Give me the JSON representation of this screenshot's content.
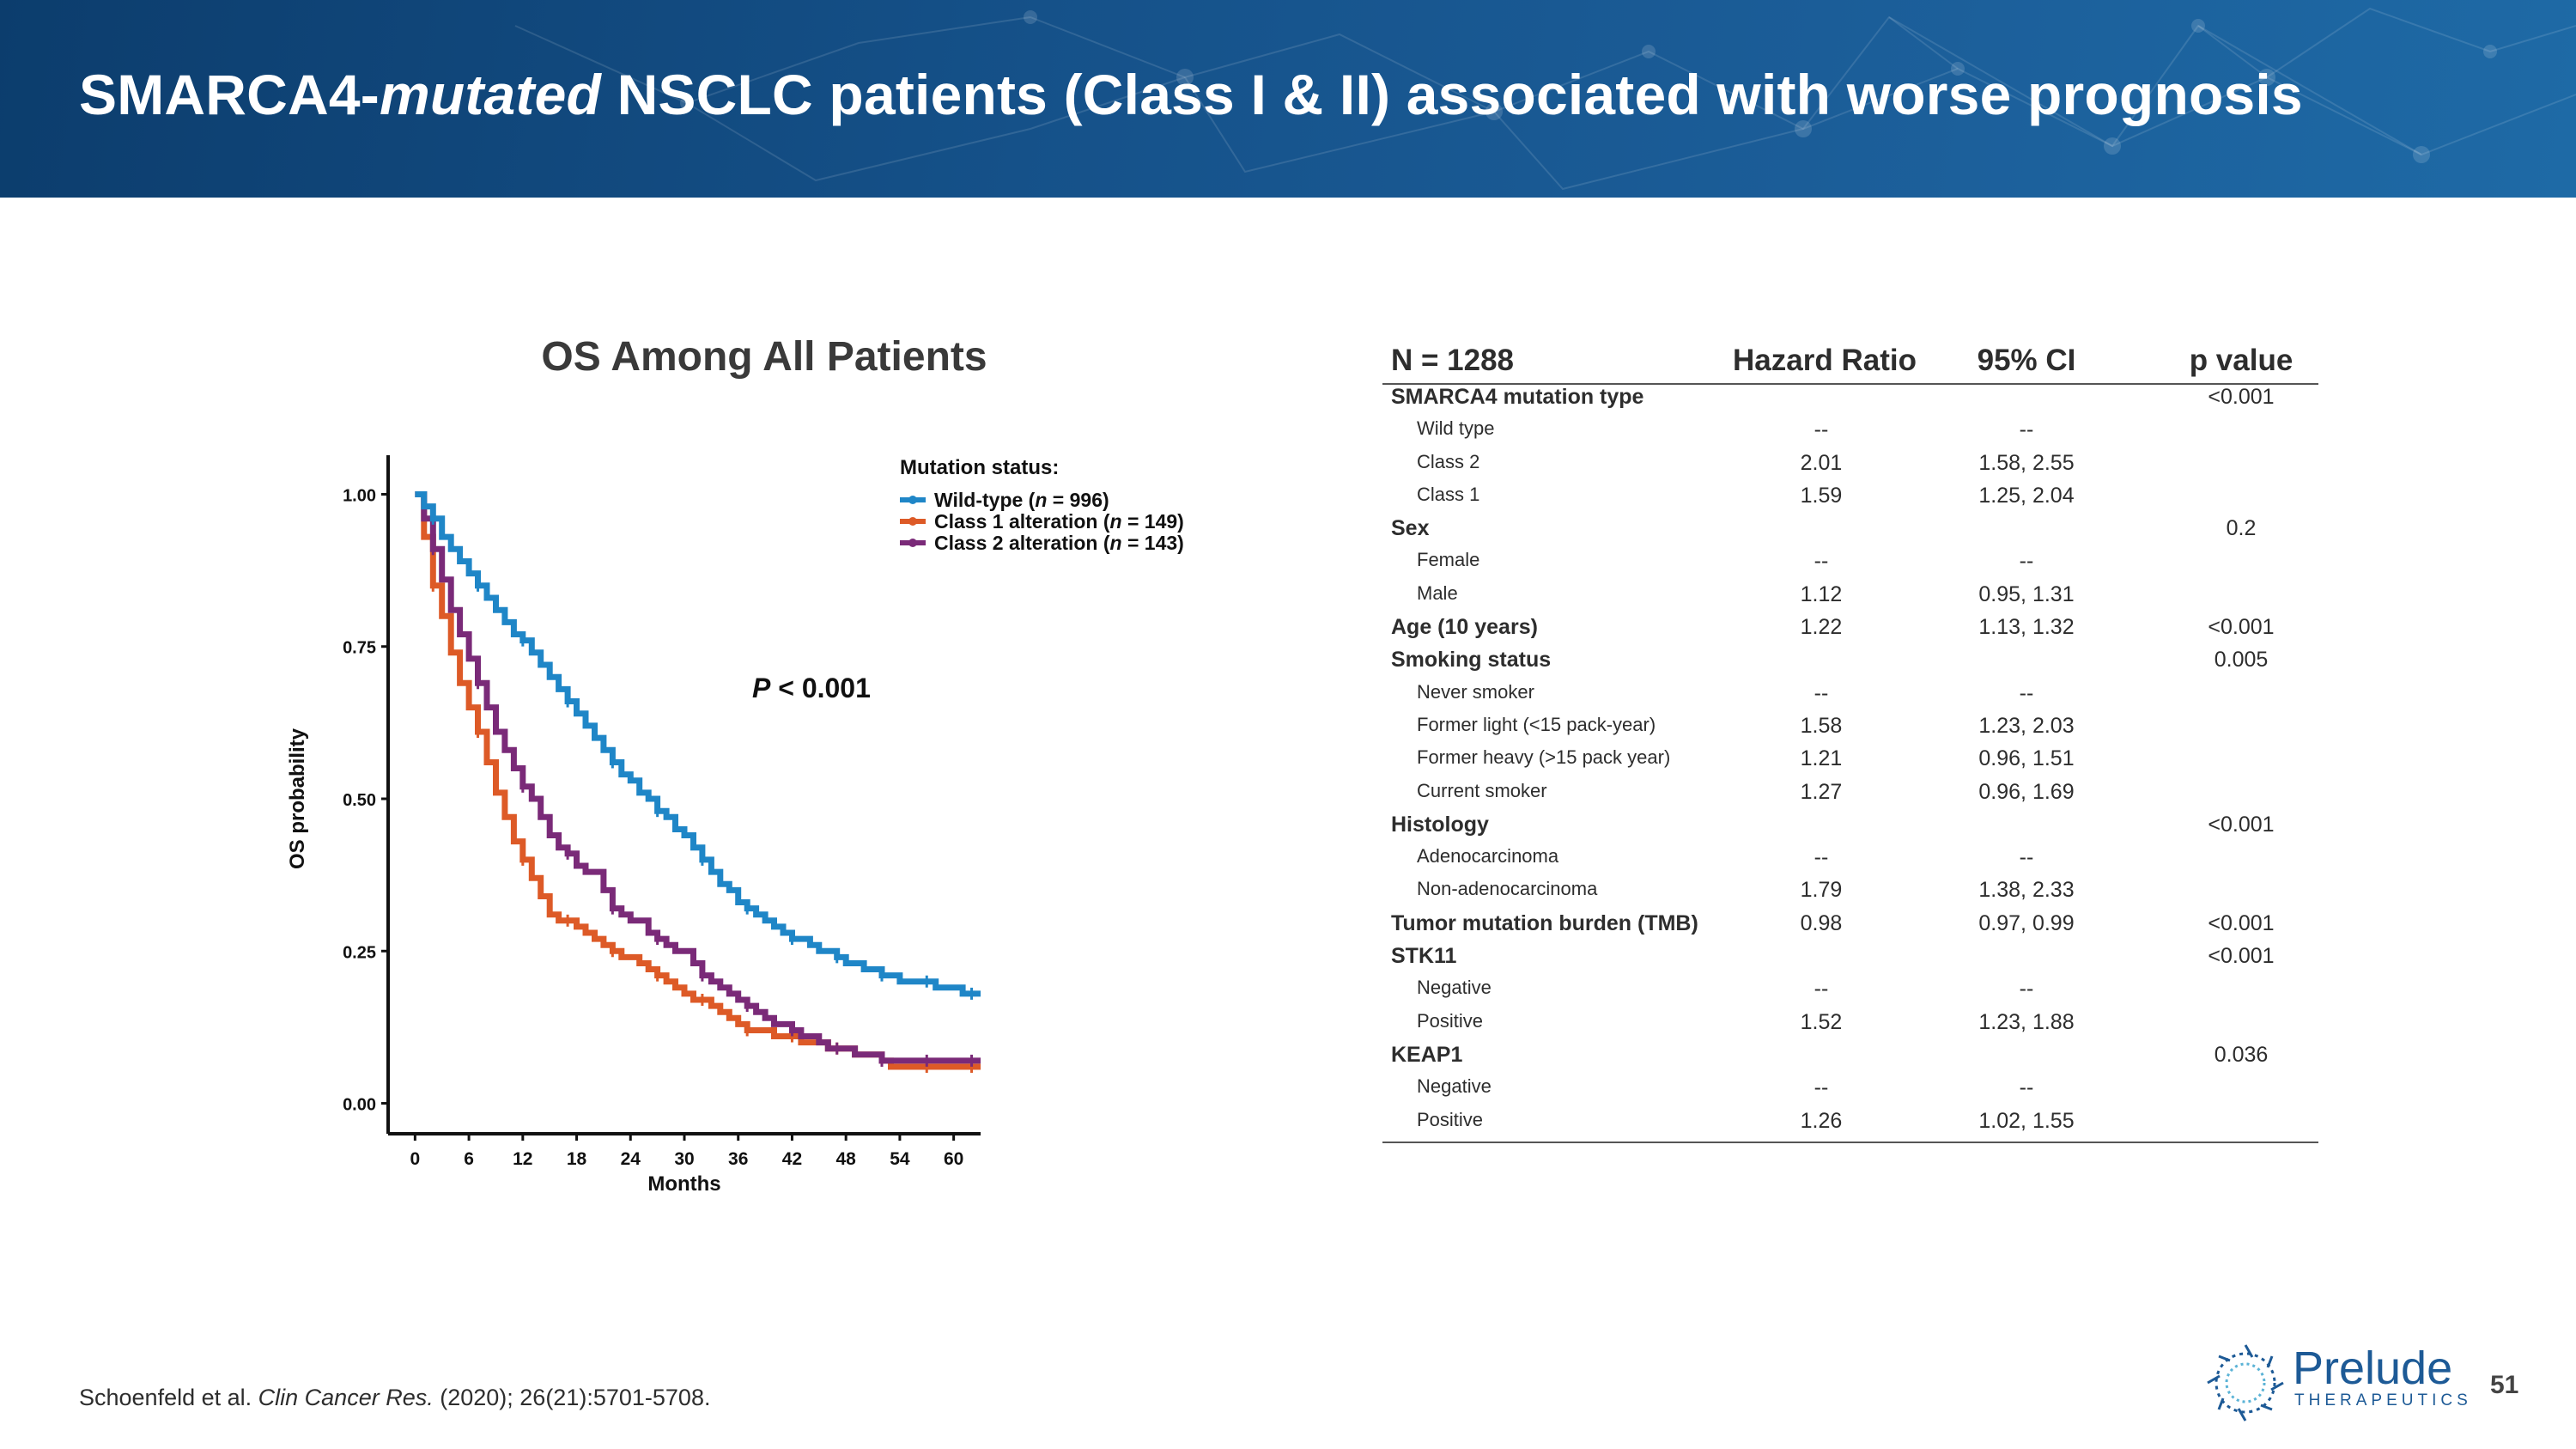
{
  "slide": {
    "title_part1": "SMARCA4-",
    "title_italic": "mutated",
    "title_part2": " NSCLC patients (Class I & II) associated with worse prognosis",
    "page_number": "51",
    "reference": {
      "authors": "Schoenfeld et al. ",
      "journal": "Clin Cancer Res.",
      "details": " (2020); 26(21):5701-5708."
    },
    "logo": {
      "name": "Prelude",
      "tagline": "THERAPEUTICS"
    },
    "colors": {
      "header": "#155189",
      "wild_type": "#1f86c7",
      "class1": "#dd5a27",
      "class2": "#7a2a78"
    }
  },
  "chart_data": {
    "type": "line",
    "title": "OS Among All Patients",
    "xlabel": "Months",
    "ylabel": "OS probability",
    "xlim": [
      -3,
      63
    ],
    "ylim": [
      -0.05,
      1.05
    ],
    "x_ticks": [
      0,
      6,
      12,
      18,
      24,
      30,
      36,
      42,
      48,
      54,
      60
    ],
    "y_ticks": [
      0.0,
      0.25,
      0.5,
      0.75,
      1.0
    ],
    "y_tick_labels": [
      "0.00",
      "0.25",
      "0.50",
      "0.75",
      "1.00"
    ],
    "annotation": "< 0.001",
    "annotation_prefix": "P",
    "legend": {
      "title": "Mutation status:",
      "placement": "top-right"
    },
    "series": [
      {
        "name": "Wild-type",
        "n": "996",
        "label_prefix": "Wild-type (",
        "label_suffix": " = 996)",
        "color": "#1f86c7",
        "x": [
          0,
          1,
          2,
          3,
          4,
          5,
          6,
          7,
          8,
          9,
          10,
          11,
          12,
          13,
          14,
          15,
          16,
          17,
          18,
          19,
          20,
          21,
          22,
          23,
          24,
          25,
          26,
          27,
          28,
          29,
          30,
          31,
          32,
          33,
          34,
          35,
          36,
          37,
          38,
          39,
          40,
          41,
          42,
          43,
          44,
          45,
          46,
          47,
          48,
          49,
          50,
          51,
          52,
          53,
          54,
          55,
          56,
          57,
          58,
          59,
          60,
          61,
          62,
          63
        ],
        "y": [
          1.0,
          0.98,
          0.96,
          0.93,
          0.91,
          0.89,
          0.87,
          0.85,
          0.83,
          0.81,
          0.79,
          0.77,
          0.76,
          0.74,
          0.72,
          0.7,
          0.68,
          0.66,
          0.64,
          0.62,
          0.6,
          0.58,
          0.56,
          0.54,
          0.53,
          0.51,
          0.5,
          0.48,
          0.47,
          0.45,
          0.44,
          0.42,
          0.4,
          0.38,
          0.36,
          0.35,
          0.33,
          0.32,
          0.31,
          0.3,
          0.29,
          0.28,
          0.27,
          0.27,
          0.26,
          0.25,
          0.25,
          0.24,
          0.23,
          0.23,
          0.22,
          0.22,
          0.21,
          0.21,
          0.2,
          0.2,
          0.2,
          0.2,
          0.19,
          0.19,
          0.19,
          0.18,
          0.18,
          0.18
        ]
      },
      {
        "name": "Class 1 alteration",
        "n": "149",
        "label_prefix": "Class 1 alteration (",
        "label_suffix": " = 149)",
        "color": "#dd5a27",
        "x": [
          0,
          1,
          2,
          3,
          4,
          5,
          6,
          7,
          8,
          9,
          10,
          11,
          12,
          13,
          14,
          15,
          16,
          17,
          18,
          19,
          20,
          21,
          22,
          23,
          24,
          25,
          26,
          27,
          28,
          29,
          30,
          31,
          32,
          33,
          34,
          35,
          36,
          37,
          38,
          39,
          40,
          41,
          42,
          43,
          44,
          45,
          46,
          47,
          48,
          49,
          50,
          51,
          52,
          53,
          54,
          55,
          56,
          57,
          58,
          59,
          60,
          61,
          62,
          63
        ],
        "y": [
          1.0,
          0.93,
          0.85,
          0.8,
          0.74,
          0.69,
          0.65,
          0.61,
          0.56,
          0.51,
          0.47,
          0.43,
          0.4,
          0.37,
          0.34,
          0.31,
          0.3,
          0.3,
          0.29,
          0.28,
          0.27,
          0.26,
          0.25,
          0.24,
          0.24,
          0.23,
          0.22,
          0.21,
          0.2,
          0.19,
          0.18,
          0.17,
          0.17,
          0.16,
          0.15,
          0.14,
          0.13,
          0.12,
          0.12,
          0.12,
          0.11,
          0.11,
          0.11,
          0.1,
          0.1,
          0.1,
          0.09,
          0.09,
          0.09,
          0.08,
          0.08,
          0.08,
          0.07,
          0.06,
          0.06,
          0.06,
          0.06,
          0.06,
          0.06,
          0.06,
          0.06,
          0.06,
          0.06,
          0.06
        ]
      },
      {
        "name": "Class 2 alteration",
        "n": "143",
        "label_prefix": "Class 2 alteration (",
        "label_suffix": " = 143)",
        "color": "#7a2a78",
        "x": [
          0,
          1,
          2,
          3,
          4,
          5,
          6,
          7,
          8,
          9,
          10,
          11,
          12,
          13,
          14,
          15,
          16,
          17,
          18,
          19,
          20,
          21,
          22,
          23,
          24,
          25,
          26,
          27,
          28,
          29,
          30,
          31,
          32,
          33,
          34,
          35,
          36,
          37,
          38,
          39,
          40,
          41,
          42,
          43,
          44,
          45,
          46,
          47,
          48,
          49,
          50,
          51,
          52,
          53,
          54,
          55,
          56,
          57,
          58,
          59,
          60,
          61,
          62,
          63
        ],
        "y": [
          1.0,
          0.96,
          0.91,
          0.86,
          0.81,
          0.77,
          0.73,
          0.69,
          0.65,
          0.61,
          0.58,
          0.55,
          0.52,
          0.5,
          0.47,
          0.44,
          0.42,
          0.41,
          0.39,
          0.38,
          0.38,
          0.35,
          0.32,
          0.31,
          0.3,
          0.3,
          0.28,
          0.27,
          0.26,
          0.25,
          0.25,
          0.23,
          0.21,
          0.2,
          0.19,
          0.18,
          0.17,
          0.16,
          0.15,
          0.14,
          0.13,
          0.13,
          0.12,
          0.11,
          0.11,
          0.1,
          0.09,
          0.09,
          0.09,
          0.08,
          0.08,
          0.08,
          0.07,
          0.07,
          0.07,
          0.07,
          0.07,
          0.07,
          0.07,
          0.07,
          0.07,
          0.07,
          0.07,
          0.07
        ]
      }
    ]
  },
  "hr_table": {
    "headers": [
      "N = 1288",
      "Hazard Ratio",
      "95% CI",
      "p value"
    ],
    "rows": [
      {
        "label": "SMARCA4 mutation type",
        "hr": "",
        "ci": "",
        "p": "<0.001",
        "kind": "grp"
      },
      {
        "label": "Wild type",
        "hr": "--",
        "ci": "--",
        "p": "",
        "kind": "sub"
      },
      {
        "label": "Class 2",
        "hr": "2.01",
        "ci": "1.58, 2.55",
        "p": "",
        "kind": "sub"
      },
      {
        "label": "Class 1",
        "hr": "1.59",
        "ci": "1.25, 2.04",
        "p": "",
        "kind": "sub"
      },
      {
        "label": "Sex",
        "hr": "",
        "ci": "",
        "p": "0.2",
        "kind": "grp"
      },
      {
        "label": "Female",
        "hr": "--",
        "ci": "--",
        "p": "",
        "kind": "sub"
      },
      {
        "label": "Male",
        "hr": "1.12",
        "ci": "0.95, 1.31",
        "p": "",
        "kind": "sub"
      },
      {
        "label": "Age (10 years)",
        "hr": "1.22",
        "ci": "1.13, 1.32",
        "p": "<0.001",
        "kind": "grp"
      },
      {
        "label": "Smoking status",
        "hr": "",
        "ci": "",
        "p": "0.005",
        "kind": "grp"
      },
      {
        "label": "Never smoker",
        "hr": "--",
        "ci": "--",
        "p": "",
        "kind": "sub"
      },
      {
        "label": "Former light (<15 pack-year)",
        "hr": "1.58",
        "ci": "1.23, 2.03",
        "p": "",
        "kind": "sub"
      },
      {
        "label": "Former heavy (>15 pack year)",
        "hr": "1.21",
        "ci": "0.96, 1.51",
        "p": "",
        "kind": "sub"
      },
      {
        "label": "Current smoker",
        "hr": "1.27",
        "ci": "0.96, 1.69",
        "p": "",
        "kind": "sub"
      },
      {
        "label": "Histology",
        "hr": "",
        "ci": "",
        "p": "<0.001",
        "kind": "grp"
      },
      {
        "label": "Adenocarcinoma",
        "hr": "--",
        "ci": "--",
        "p": "",
        "kind": "sub"
      },
      {
        "label": "Non-adenocarcinoma",
        "hr": "1.79",
        "ci": "1.38, 2.33",
        "p": "",
        "kind": "sub"
      },
      {
        "label": "Tumor mutation burden (TMB)",
        "hr": "0.98",
        "ci": "0.97, 0.99",
        "p": "<0.001",
        "kind": "grp"
      },
      {
        "label": "STK11",
        "hr": "",
        "ci": "",
        "p": "<0.001",
        "kind": "grp"
      },
      {
        "label": "Negative",
        "hr": "--",
        "ci": "--",
        "p": "",
        "kind": "sub"
      },
      {
        "label": "Positive",
        "hr": "1.52",
        "ci": "1.23, 1.88",
        "p": "",
        "kind": "sub"
      },
      {
        "label": "KEAP1",
        "hr": "",
        "ci": "",
        "p": "0.036",
        "kind": "grp"
      },
      {
        "label": "Negative",
        "hr": "--",
        "ci": "--",
        "p": "",
        "kind": "sub"
      },
      {
        "label": "Positive",
        "hr": "1.26",
        "ci": "1.02, 1.55",
        "p": "",
        "kind": "sub"
      }
    ]
  }
}
